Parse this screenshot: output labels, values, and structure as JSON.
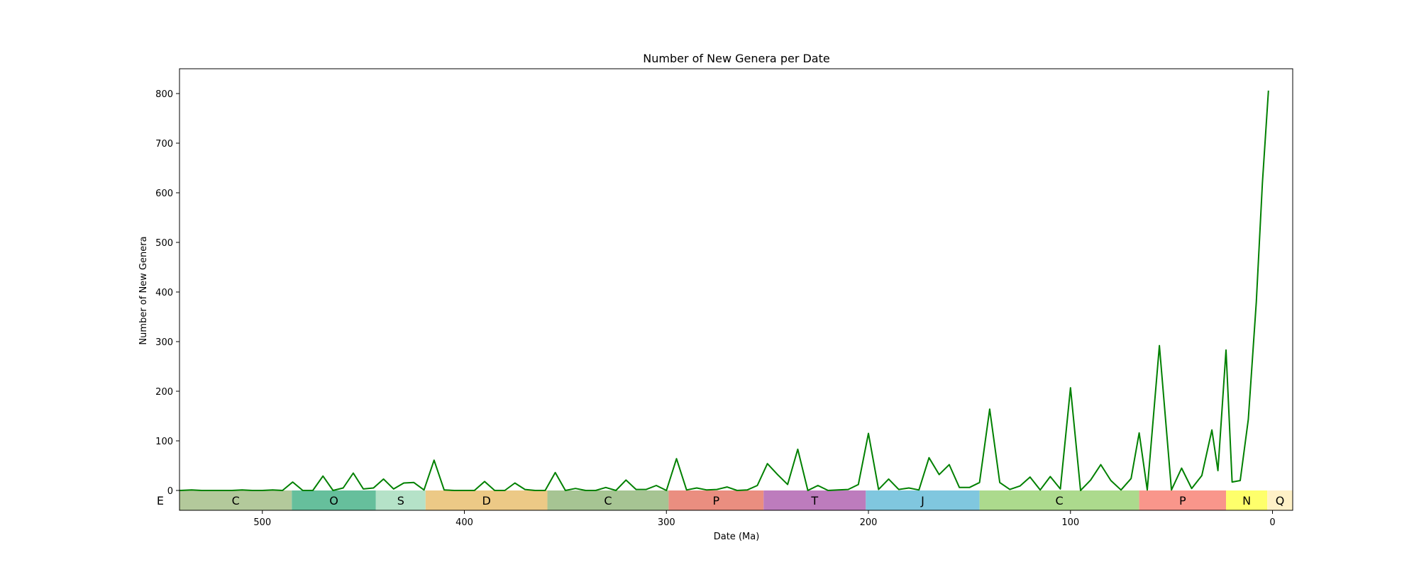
{
  "chart_data": {
    "type": "line",
    "title": "Number of New Genera per Date",
    "xlabel": "Date (Ma)",
    "ylabel": "Number of New Genera",
    "xlim": [
      541,
      -10
    ],
    "ylim": [
      -40,
      850
    ],
    "xticks": [
      500,
      400,
      300,
      200,
      100,
      0
    ],
    "yticks": [
      0,
      100,
      200,
      300,
      400,
      500,
      600,
      700,
      800
    ],
    "grid": false,
    "line_color": "#008000",
    "series": [
      {
        "x": [
          541,
          535,
          530,
          525,
          520,
          515,
          510,
          505,
          500,
          495,
          490,
          485,
          480,
          475,
          470,
          465,
          460,
          455,
          450,
          445,
          440,
          435,
          430,
          425,
          420,
          415,
          410,
          405,
          400,
          395,
          390,
          385,
          380,
          375,
          370,
          365,
          360,
          355,
          350,
          345,
          340,
          335,
          330,
          325,
          320,
          315,
          310,
          305,
          300,
          295,
          290,
          285,
          280,
          275,
          270,
          265,
          260,
          255,
          250,
          245,
          240,
          235,
          230,
          225,
          220,
          215,
          210,
          205,
          200,
          195,
          190,
          185,
          180,
          175,
          170,
          165,
          160,
          155,
          150,
          145,
          140,
          135,
          130,
          125,
          120,
          115,
          110,
          105,
          100,
          95,
          90,
          85,
          80,
          75,
          70,
          66,
          62,
          56,
          50,
          45,
          40,
          35,
          30,
          27,
          23,
          20,
          16,
          12,
          8,
          5,
          2
        ],
        "values": [
          0,
          1,
          0,
          0,
          0,
          0,
          1,
          0,
          0,
          1,
          0,
          17,
          0,
          0,
          29,
          0,
          5,
          35,
          3,
          5,
          23,
          3,
          15,
          16,
          1,
          61,
          1,
          0,
          0,
          0,
          18,
          0,
          0,
          15,
          2,
          0,
          0,
          36,
          0,
          4,
          0,
          0,
          6,
          0,
          21,
          2,
          2,
          10,
          0,
          64,
          1,
          5,
          1,
          2,
          7,
          0,
          1,
          10,
          54,
          32,
          12,
          83,
          0,
          10,
          0,
          1,
          2,
          12,
          115,
          2,
          23,
          2,
          5,
          1,
          66,
          32,
          52,
          6,
          6,
          16,
          164,
          16,
          2,
          9,
          27,
          1,
          28,
          3,
          207,
          0,
          21,
          52,
          20,
          1,
          24,
          116,
          1,
          292,
          1,
          45,
          4,
          30,
          122,
          40,
          283,
          17,
          20,
          143,
          380,
          620,
          806
        ]
      }
    ],
    "periods": [
      {
        "label": "E",
        "start": 560,
        "end": 541,
        "color": "#ffffff"
      },
      {
        "label": "C",
        "start": 541,
        "end": 485.4,
        "color": "#b3c99b"
      },
      {
        "label": "O",
        "start": 485.4,
        "end": 443.8,
        "color": "#66bf9c"
      },
      {
        "label": "S",
        "start": 443.8,
        "end": 419.2,
        "color": "#b5e2c8"
      },
      {
        "label": "D",
        "start": 419.2,
        "end": 358.9,
        "color": "#ecc986"
      },
      {
        "label": "C",
        "start": 358.9,
        "end": 298.9,
        "color": "#a6c493"
      },
      {
        "label": "P",
        "start": 298.9,
        "end": 251.9,
        "color": "#ea8e80"
      },
      {
        "label": "T",
        "start": 251.9,
        "end": 201.3,
        "color": "#bd7cbd"
      },
      {
        "label": "J",
        "start": 201.3,
        "end": 145,
        "color": "#80c7df"
      },
      {
        "label": "C",
        "start": 145,
        "end": 66,
        "color": "#acda8d"
      },
      {
        "label": "P",
        "start": 66,
        "end": 23,
        "color": "#f9968b"
      },
      {
        "label": "N",
        "start": 23,
        "end": 2.58,
        "color": "#feff6b"
      },
      {
        "label": "Q",
        "start": 2.58,
        "end": -10,
        "color": "#fff1c7"
      }
    ]
  }
}
